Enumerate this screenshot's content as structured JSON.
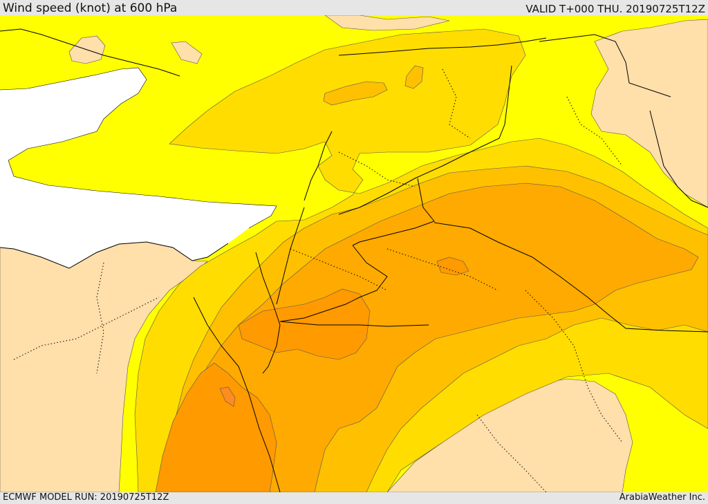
{
  "header": {
    "title": "Wind speed (knot) at 600 hPa",
    "valid_time": "VALID T+000 THU. 20190725T12Z"
  },
  "footer": {
    "model_run": "ECMWF MODEL RUN: 20190725T12Z",
    "credit": "ArabiaWeather Inc."
  },
  "map": {
    "colors": {
      "sea": "#ffffff",
      "calm": "#ffdfaa",
      "band1": "#ffff00",
      "band2": "#ffdd00",
      "band3": "#ffc000",
      "band4": "#ffaa00",
      "band5": "#ff9a00",
      "band6": "#ff8c20",
      "border": "#000000"
    }
  }
}
